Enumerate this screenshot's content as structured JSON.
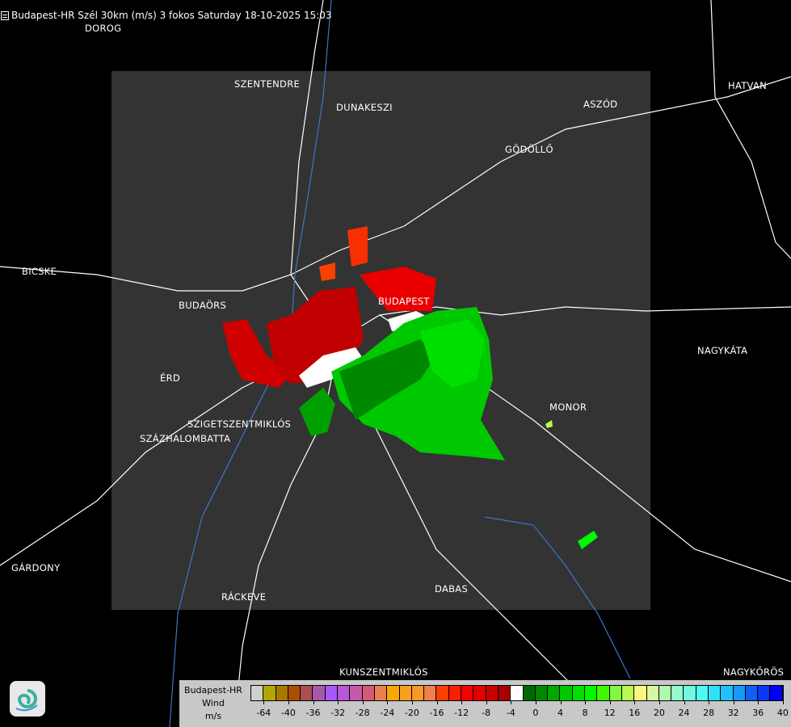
{
  "title": "Budapest-HR Szél 30km (m/s) 3 fokos Saturday 18-10-2025 15:03",
  "title_icon": "document-icon",
  "cities": [
    {
      "name": "DOROG"
    },
    {
      "name": "SZENTENDRE"
    },
    {
      "name": "DUNAKESZI"
    },
    {
      "name": "HATVAN"
    },
    {
      "name": "ASZÓD"
    },
    {
      "name": "GÖDÖLLŐ"
    },
    {
      "name": "BICSKE"
    },
    {
      "name": "BUDAÖRS"
    },
    {
      "name": "BUDAPEST"
    },
    {
      "name": "NAGYKÁTA"
    },
    {
      "name": "ÉRD"
    },
    {
      "name": "MONOR"
    },
    {
      "name": "SZIGETSZENTMIKLÓS"
    },
    {
      "name": "SZÁZHALOMBATTA"
    },
    {
      "name": "GÁRDONY"
    },
    {
      "name": "RÁCKEVE"
    },
    {
      "name": "DABAS"
    },
    {
      "name": "KUNSZENTMIKLÓS"
    },
    {
      "name": "NAGYKŐRÖS"
    }
  ],
  "legend": {
    "station": "Budapest-HR",
    "quantity": "Wind",
    "unit": "m/s",
    "colors": [
      "#d0d0d0",
      "#b0a800",
      "#a87800",
      "#a85000",
      "#a85050",
      "#a858a8",
      "#a858f8",
      "#b858d8",
      "#c858a8",
      "#d85878",
      "#e88050",
      "#f8a800",
      "#f8a020",
      "#f89828",
      "#f08050",
      "#f84000",
      "#f82000",
      "#f80000",
      "#e00000",
      "#c80000",
      "#a80000",
      "#ffffff",
      "#006800",
      "#008800",
      "#00a800",
      "#00c800",
      "#00e000",
      "#00f800",
      "#40f800",
      "#80f840",
      "#b8f850",
      "#f8f880",
      "#d8f8a0",
      "#b0f8b0",
      "#98f8d0",
      "#70f8e0",
      "#50f8f8",
      "#30e0f8",
      "#20c0f8",
      "#1898f8",
      "#1060f8",
      "#0838f8",
      "#0000f8"
    ],
    "ticks": [
      "-64",
      "-40",
      "-36",
      "-32",
      "-28",
      "-24",
      "-20",
      "-16",
      "-12",
      "-8",
      "-4",
      "0",
      "4",
      "8",
      "12",
      "16",
      "20",
      "24",
      "28",
      "32",
      "36",
      "40"
    ]
  },
  "logo": "swirl-logo-icon"
}
